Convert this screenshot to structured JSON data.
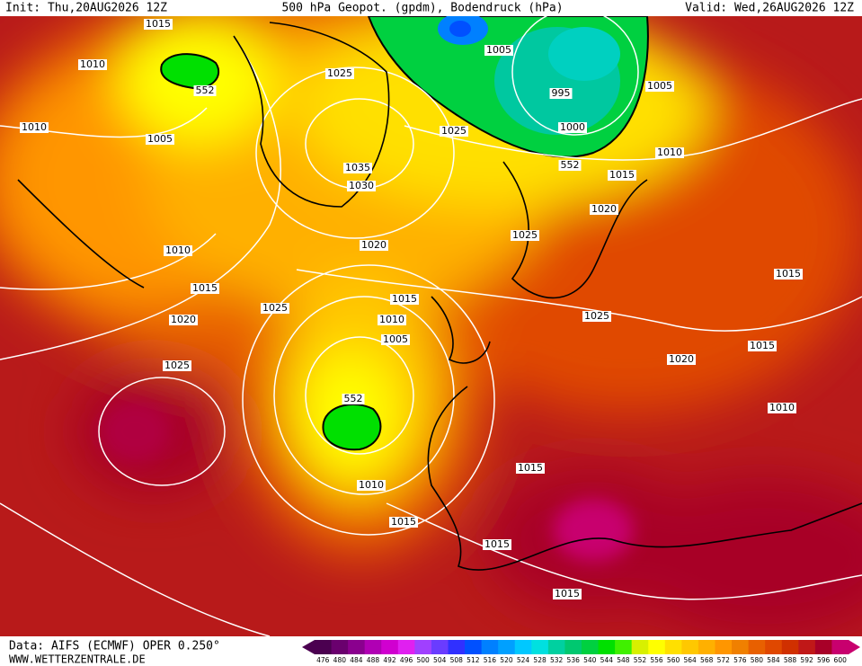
{
  "header": {
    "init": "Init: Thu,20AUG2026 12Z",
    "title": "500 hPa Geopot. (gpdm), Bodendruck (hPa)",
    "valid": "Valid: Wed,26AUG2026 12Z"
  },
  "map": {
    "isobar_labels": [
      "1015",
      "1010",
      "1010",
      "1005",
      "1025",
      "1005",
      "995",
      "1005",
      "1000",
      "1015",
      "1010",
      "1025",
      "1035",
      "1030",
      "1020",
      "1025",
      "1020",
      "1010",
      "1015",
      "1025",
      "1015",
      "1010",
      "1005",
      "1025",
      "1015",
      "1015",
      "1020",
      "1020",
      "1025",
      "1010",
      "1015",
      "1010",
      "1015",
      "1015",
      "1015"
    ],
    "height_labels": [
      "552",
      "552",
      "552"
    ]
  },
  "legend": {
    "levels": [
      476,
      480,
      484,
      488,
      492,
      496,
      500,
      504,
      508,
      512,
      516,
      520,
      524,
      528,
      532,
      536,
      540,
      544,
      548,
      552,
      556,
      560,
      564,
      568,
      572,
      576,
      580,
      584,
      588,
      592,
      596,
      600
    ],
    "colors": [
      "#4b0050",
      "#6a006e",
      "#8a008e",
      "#b000b4",
      "#d000d0",
      "#e020f0",
      "#a040ff",
      "#6a3cff",
      "#3030ff",
      "#0050ff",
      "#0080ff",
      "#00a0ff",
      "#00c8ff",
      "#00e0e0",
      "#00d0a0",
      "#00c870",
      "#00d040",
      "#00e000",
      "#40f000",
      "#d8f000",
      "#ffff00",
      "#ffe000",
      "#ffc800",
      "#ffb000",
      "#ff9600",
      "#f08000",
      "#e86000",
      "#e04800",
      "#d03000",
      "#c01818",
      "#a80028",
      "#c8006e"
    ]
  },
  "footer": {
    "source": "Data: AIFS (ECMWF) OPER 0.250°",
    "site": "WWW.WETTERZENTRALE.DE"
  }
}
